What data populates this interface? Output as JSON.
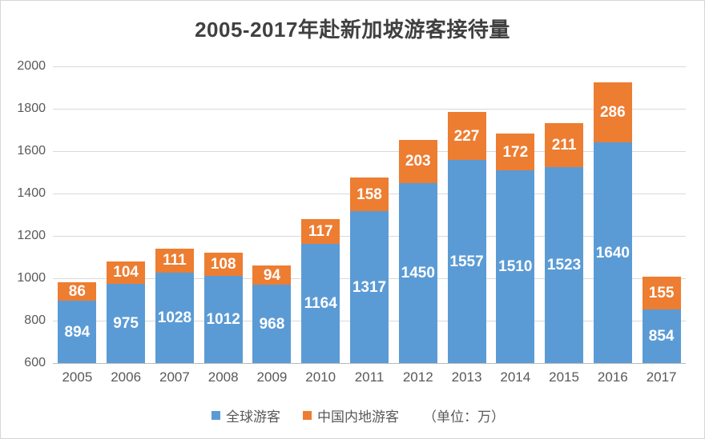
{
  "title": "2005-2017年赴新加坡游客接待量",
  "chart_data": {
    "type": "bar",
    "stacked": true,
    "title": "2005-2017年赴新加坡游客接待量",
    "categories": [
      "2005",
      "2006",
      "2007",
      "2008",
      "2009",
      "2010",
      "2011",
      "2012",
      "2013",
      "2014",
      "2015",
      "2016",
      "2017"
    ],
    "series": [
      {
        "name": "全球游客",
        "color": "#5B9BD5",
        "values": [
          894,
          975,
          1028,
          1012,
          968,
          1164,
          1317,
          1450,
          1557,
          1510,
          1523,
          1640,
          854
        ]
      },
      {
        "name": "中国内地游客",
        "color": "#ED7D31",
        "values": [
          86,
          104,
          111,
          108,
          94,
          117,
          158,
          203,
          227,
          172,
          211,
          286,
          155
        ]
      }
    ],
    "ylim": [
      600,
      2000
    ],
    "yticks": [
      600,
      800,
      1000,
      1200,
      1400,
      1600,
      1800,
      2000
    ],
    "grid": true,
    "legend_position": "bottom",
    "unit_label": "（单位：万）",
    "data_labels": "inside-center white bold"
  },
  "colors": {
    "series_global": "#5B9BD5",
    "series_china": "#ED7D31",
    "title_text": "#404040",
    "axis_text": "#595959",
    "gridline": "#D9D9D9",
    "background": "#FFFFFF",
    "border": "#D6D6D6"
  }
}
